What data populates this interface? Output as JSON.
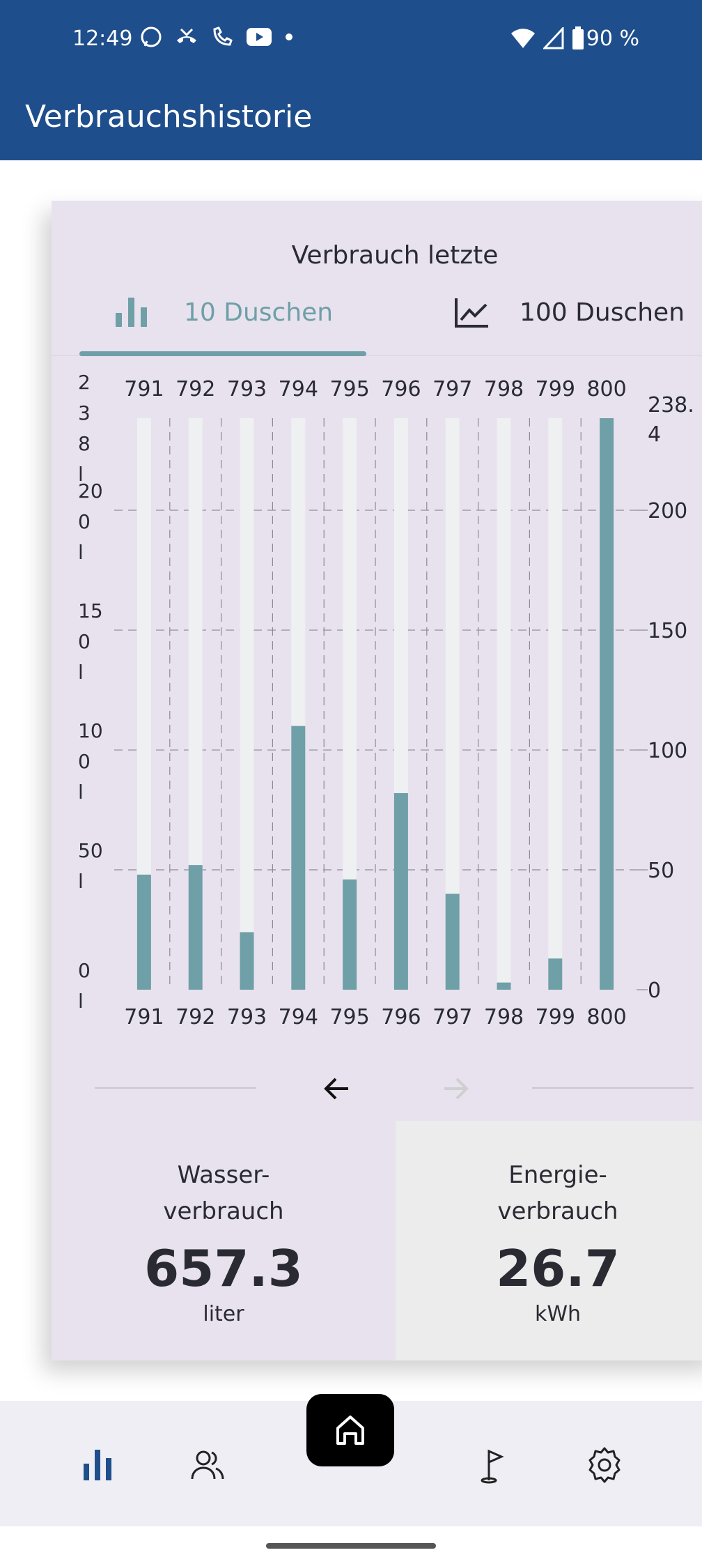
{
  "status_bar": {
    "time": "12:49",
    "battery": "90 %"
  },
  "app_bar": {
    "title": "Verbrauchshistorie"
  },
  "card": {
    "heading": "Verbrauch letzte",
    "tabs": [
      {
        "label": "10 Duschen",
        "icon": "bar-chart-icon",
        "selected": true
      },
      {
        "label": "100 Duschen",
        "icon": "line-chart-icon",
        "selected": false
      }
    ]
  },
  "chart_data": {
    "type": "bar",
    "categories": [
      "791",
      "792",
      "793",
      "794",
      "795",
      "796",
      "797",
      "798",
      "799",
      "800"
    ],
    "values": [
      48,
      52,
      24,
      110,
      46,
      82,
      40,
      3,
      13,
      238.4
    ],
    "max": 238.4,
    "ylim": [
      0,
      238.4
    ],
    "left_axis_ticks": [
      "0 l",
      "50 l",
      "100 l",
      "150 l",
      "200 l",
      "238 l"
    ],
    "right_axis_ticks": [
      "0",
      "50",
      "100",
      "150",
      "200",
      "238.4"
    ],
    "colors": {
      "bar": "#6f9fa7",
      "track": "#eef0f2"
    }
  },
  "stats": {
    "water": {
      "label_line1": "Wasser-",
      "label_line2": "verbrauch",
      "value": "657.3",
      "unit": "liter"
    },
    "energy": {
      "label_line1": "Energie-",
      "label_line2": "verbrauch",
      "value": "26.7",
      "unit": "kWh"
    }
  },
  "bottom_nav": [
    "statistics-icon",
    "users-icon",
    "home-icon",
    "goal-flag-icon",
    "settings-icon"
  ]
}
